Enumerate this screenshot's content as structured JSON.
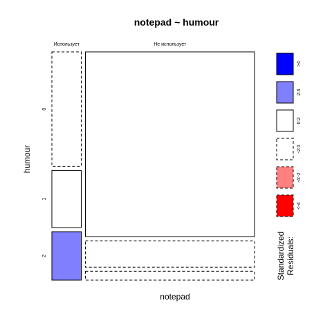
{
  "chart_data": {
    "type": "mosaic",
    "title": "notepad ~ humour",
    "xlabel": "notepad",
    "ylabel": "humour",
    "notepad_levels": [
      "Использует",
      "Не использует"
    ],
    "humour_levels": [
      "0",
      "1",
      "2"
    ],
    "cells": [
      {
        "notepad": "Использует",
        "humour": "0",
        "proportion_of_column": 0.52,
        "residual_class": "-2:0"
      },
      {
        "notepad": "Использует",
        "humour": "1",
        "proportion_of_column": 0.26,
        "residual_class": "0:2"
      },
      {
        "notepad": "Использует",
        "humour": "2",
        "proportion_of_column": 0.22,
        "residual_class": "2:4"
      },
      {
        "notepad": "Не использует",
        "humour": "0",
        "proportion_of_column": 0.84,
        "residual_class": "0:2"
      },
      {
        "notepad": "Не использует",
        "humour": "1",
        "proportion_of_column": 0.12,
        "residual_class": "-2:0"
      },
      {
        "notepad": "Не использует",
        "humour": "2",
        "proportion_of_column": 0.04,
        "residual_class": "-2:0"
      }
    ],
    "column_shares": [
      0.148,
      0.852
    ],
    "legend": {
      "title_lines": [
        "Standardized",
        "Residuals:"
      ],
      "entries": [
        {
          "label": ">4",
          "class": ">4",
          "fill": "#0000ff",
          "dashed": false
        },
        {
          "label": "2:4",
          "class": "2:4",
          "fill": "#8080ff",
          "dashed": false
        },
        {
          "label": "0:2",
          "class": "0:2",
          "fill": "#ffffff",
          "dashed": false
        },
        {
          "label": "-2:0",
          "class": "-2:0",
          "fill": "#ffffff",
          "dashed": true
        },
        {
          "label": "-4:-2",
          "class": "-4:-2",
          "fill": "#ff8080",
          "dashed": true
        },
        {
          "label": "<-4",
          "class": "<-4",
          "fill": "#ff0000",
          "dashed": true
        }
      ]
    }
  }
}
